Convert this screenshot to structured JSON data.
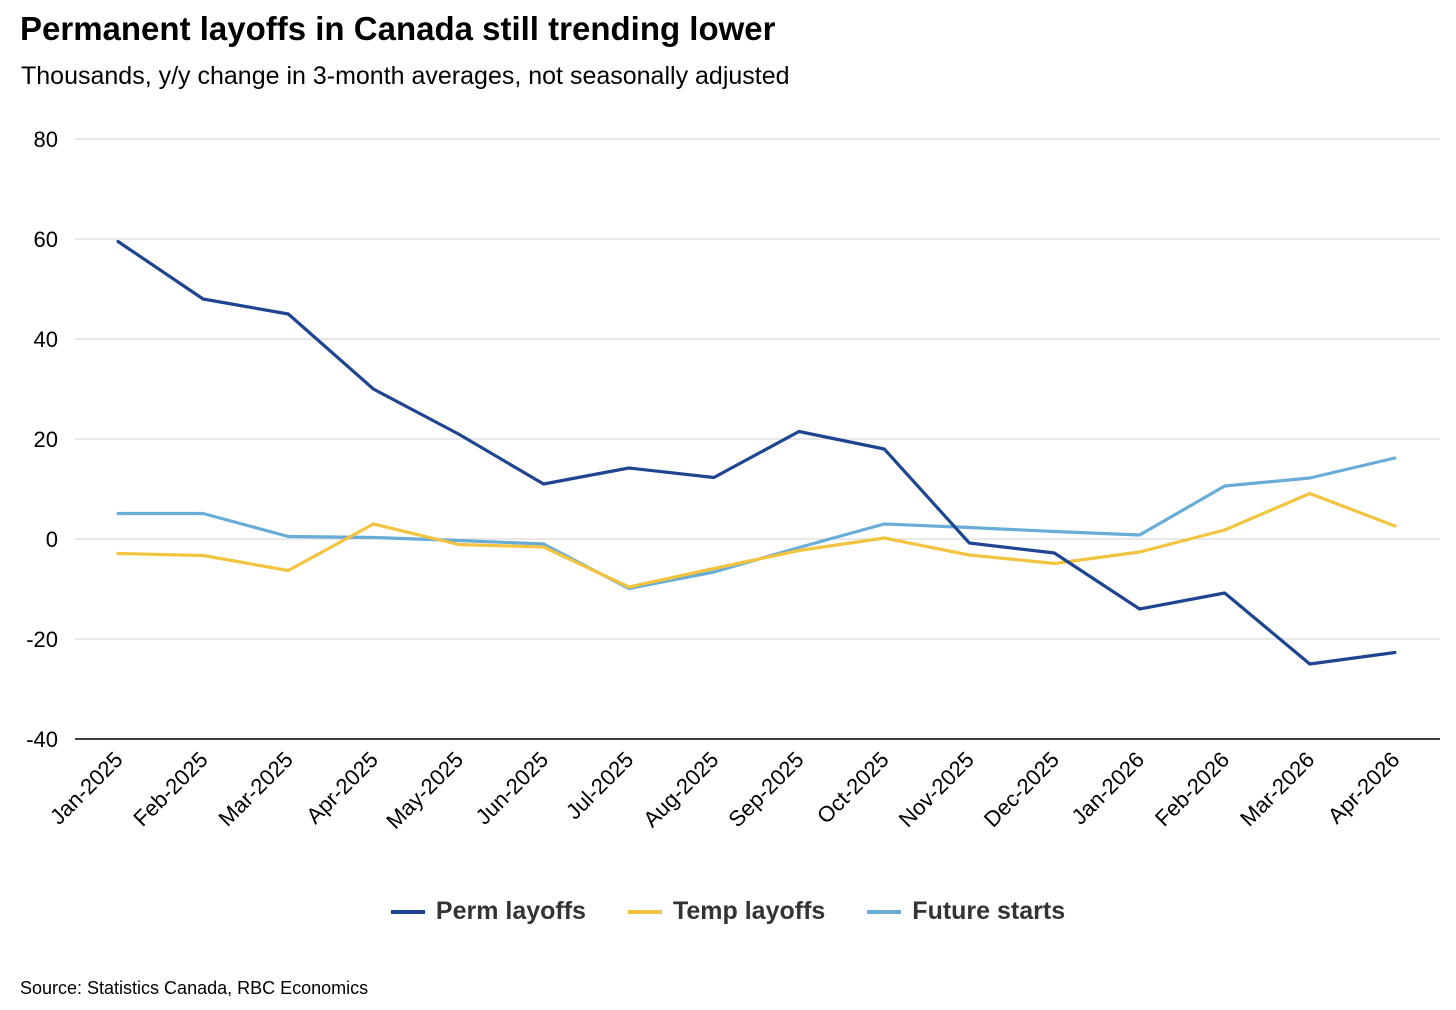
{
  "title": "Permanent layoffs in Canada still trending lower",
  "subtitle": "Thousands, y/y change in 3-month averages, not seasonally adjusted",
  "source": "Source: Statistics Canada, RBC Economics",
  "legend": {
    "items": [
      {
        "label": "Perm layoffs",
        "color": "#1f4591"
      },
      {
        "label": "Temp layoffs",
        "color": "#f2c440"
      },
      {
        "label": "Future starts",
        "color": "#68acd8"
      }
    ]
  },
  "chart_data": {
    "type": "line",
    "title": "Permanent layoffs in Canada still trending lower",
    "subtitle": "Thousands, y/y change in 3-month averages, not seasonally adjusted",
    "xlabel": "",
    "ylabel": "",
    "categories": [
      "Jan-2025",
      "Feb-2025",
      "Mar-2025",
      "Apr-2025",
      "May-2025",
      "Jun-2025",
      "Jul-2025",
      "Aug-2025",
      "Sep-2025",
      "Oct-2025",
      "Nov-2025",
      "Dec-2025",
      "Jan-2026",
      "Feb-2026",
      "Mar-2026",
      "Apr-2026"
    ],
    "ylim": [
      -40,
      80
    ],
    "yticks": [
      "-40",
      "-20",
      "0",
      "20",
      "40",
      "60",
      "80"
    ],
    "grid": true,
    "legend_position": "bottom",
    "series": [
      {
        "name": "Perm layoffs",
        "color": "#1f4591",
        "values": [
          59.5,
          48.0,
          45.0,
          30.0,
          21.0,
          11.0,
          14.2,
          12.3,
          21.5,
          18.0,
          -0.8,
          -2.8,
          -14.0,
          -10.8,
          -25.0,
          -22.7
        ]
      },
      {
        "name": "Temp layoffs",
        "color": "#f2c440",
        "values": [
          -2.9,
          -3.3,
          -6.3,
          3.0,
          -1.1,
          -1.6,
          -9.6,
          -5.9,
          -2.3,
          0.2,
          -3.2,
          -4.9,
          -2.6,
          1.8,
          9.1,
          2.6
        ]
      },
      {
        "name": "Future starts",
        "color": "#68acd8",
        "values": [
          5.1,
          5.1,
          0.5,
          0.3,
          -0.3,
          -1.0,
          -9.9,
          -6.6,
          -1.7,
          3.0,
          2.3,
          1.5,
          0.8,
          10.6,
          12.2,
          16.2
        ]
      }
    ]
  }
}
